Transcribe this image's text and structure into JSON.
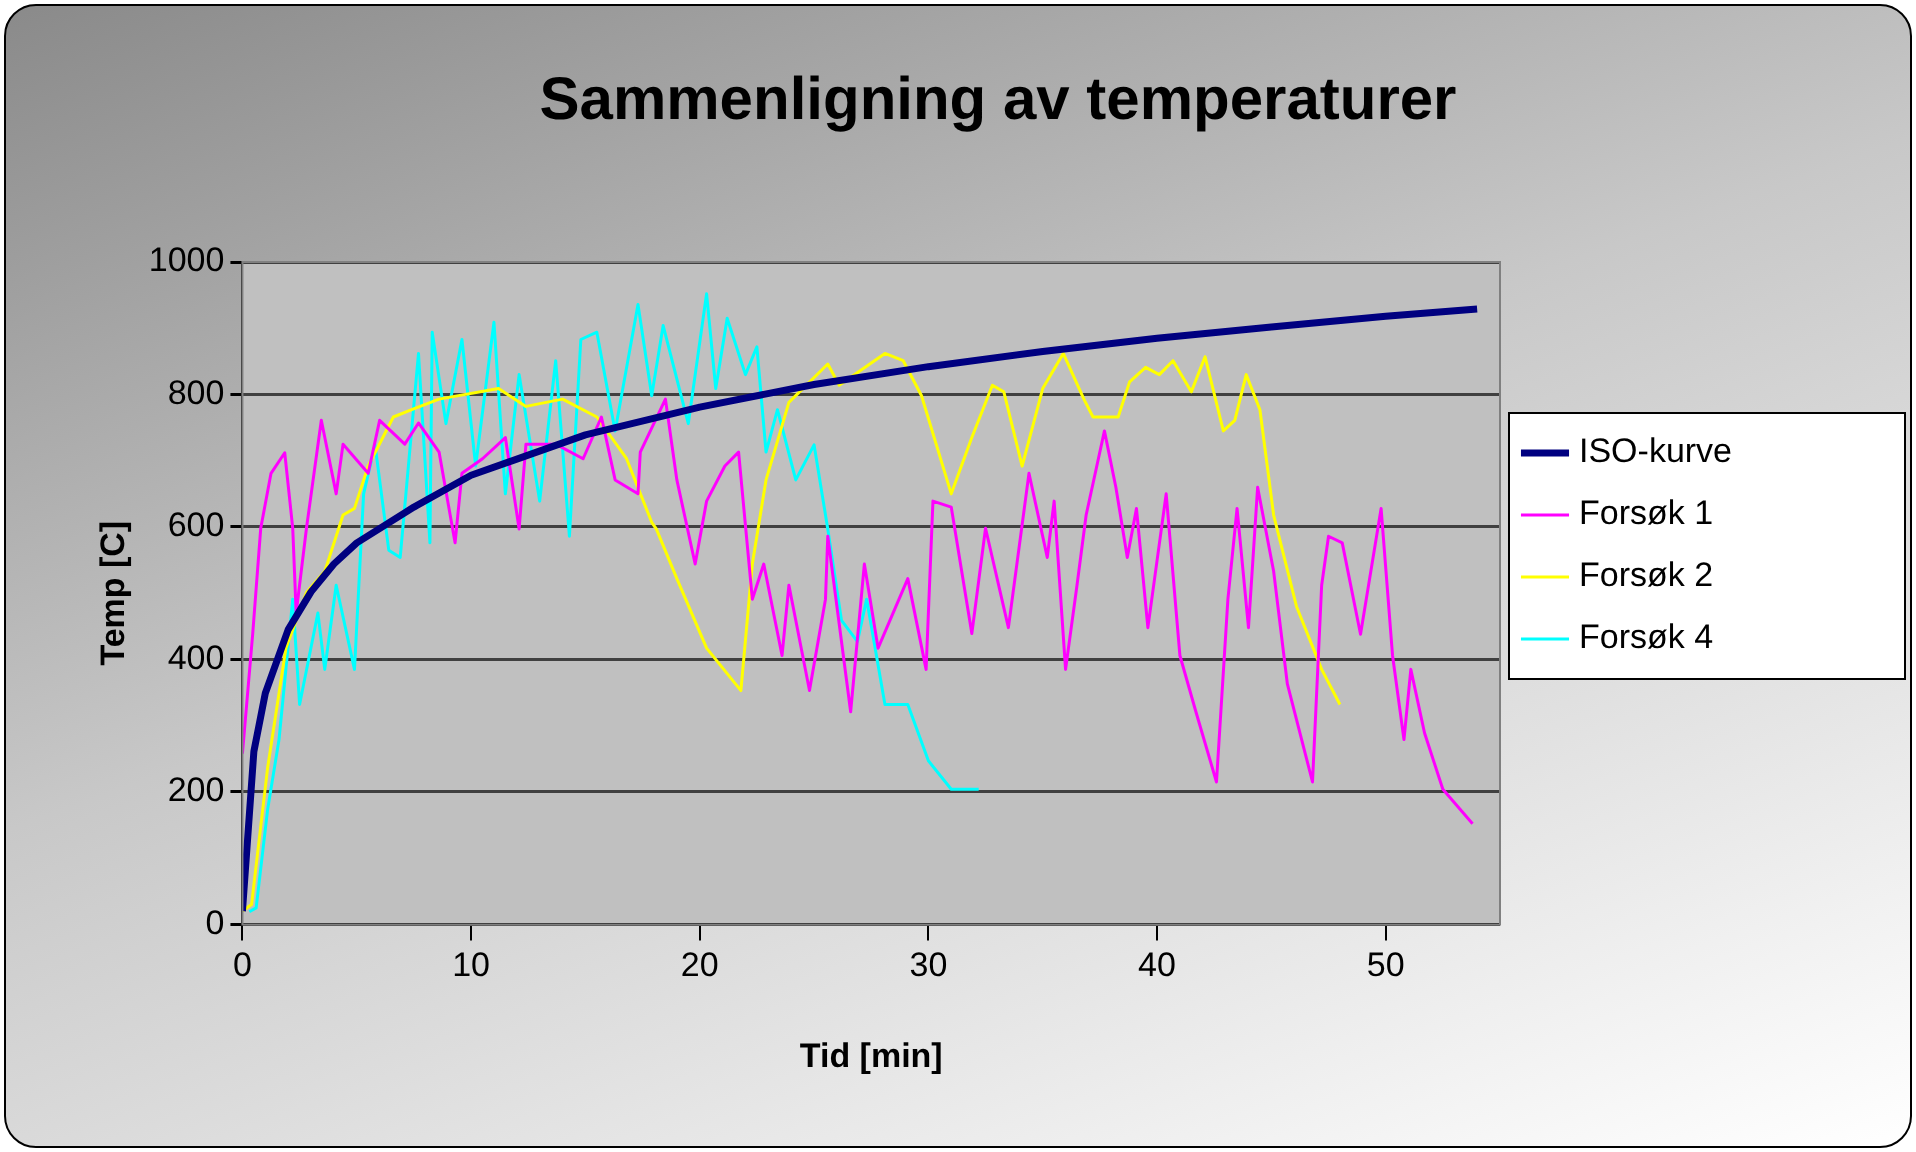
{
  "chart_data": {
    "type": "line",
    "title": "Sammenligning av temperaturer",
    "xlabel": "Tid [min]",
    "ylabel": "Temp [C]",
    "xlim": [
      0,
      55
    ],
    "xticks": [
      0,
      10,
      20,
      30,
      40,
      50
    ],
    "ylim": [
      0,
      1000
    ],
    "yticks": [
      0,
      200,
      400,
      600,
      800,
      1000
    ],
    "grid": "y",
    "legend": "right",
    "marker": "none",
    "line_style": "solid",
    "series": [
      {
        "name": "ISO-kurve",
        "color": "#000080",
        "x": [
          0,
          0.5,
          1,
          2,
          3,
          4,
          5,
          7.5,
          10,
          15,
          20,
          25,
          30,
          35,
          40,
          45,
          50,
          54
        ],
        "values": [
          20,
          261,
          349,
          445,
          502,
          544,
          576,
          630,
          678,
          739,
          781,
          815,
          842,
          865,
          885,
          902,
          918,
          929
        ]
      },
      {
        "name": "Forsøk 1",
        "color": "#ff00ff",
        "x": [
          0,
          0.45,
          0.8,
          1.25,
          1.85,
          2.2,
          2.35,
          2.8,
          3.45,
          4.1,
          4.4,
          5.5,
          6.0,
          7.1,
          7.7,
          8.6,
          9.3,
          9.6,
          10.5,
          11.5,
          12.1,
          12.4,
          13.7,
          14.9,
          15.7,
          16.3,
          17.3,
          17.4,
          18.5,
          19.0,
          19.8,
          20.3,
          21.1,
          21.7,
          22.3,
          22.8,
          23.6,
          23.9,
          24.8,
          25.5,
          25.6,
          26.6,
          27.2,
          27.8,
          29.1,
          29.9,
          30.2,
          31.0,
          31.9,
          32.5,
          33.5,
          34.4,
          35.2,
          35.5,
          36.0,
          36.5,
          36.9,
          37.7,
          38.2,
          38.7,
          39.1,
          39.6,
          40.4,
          41.0,
          41.7,
          42.6,
          43.1,
          43.5,
          44.0,
          44.4,
          45.1,
          45.7,
          46.8,
          47.2,
          47.5,
          48.1,
          48.9,
          49.8,
          50.3,
          50.8,
          51.1,
          51.7,
          52.5,
          53.8
        ],
        "values": [
          258,
          439,
          598,
          681,
          712,
          598,
          470,
          598,
          761,
          650,
          725,
          681,
          761,
          725,
          757,
          713,
          576,
          681,
          703,
          735,
          597,
          725,
          725,
          703,
          766,
          671,
          650,
          713,
          793,
          671,
          544,
          639,
          692,
          713,
          491,
          544,
          406,
          512,
          353,
          491,
          586,
          321,
          544,
          417,
          522,
          385,
          639,
          630,
          439,
          598,
          448,
          681,
          554,
          639,
          385,
          512,
          618,
          745,
          660,
          554,
          628,
          448,
          650,
          406,
          321,
          215,
          491,
          628,
          448,
          660,
          533,
          363,
          215,
          512,
          586,
          576,
          438,
          628,
          406,
          279,
          385,
          289,
          204,
          152
        ]
      },
      {
        "name": "Forsøk 2",
        "color": "#ffff00",
        "x": [
          0,
          0.4,
          1.1,
          1.9,
          2.8,
          3.6,
          4.4,
          4.9,
          5.5,
          6.6,
          7.4,
          8.6,
          11.2,
          12.4,
          14.0,
          15.5,
          16.8,
          17.9,
          18.1,
          19.0,
          20.3,
          21.8,
          22.3,
          22.9,
          23.9,
          25.6,
          26.1,
          28.1,
          28.9,
          29.7,
          31.0,
          31.9,
          32.8,
          33.3,
          34.1,
          35.0,
          35.9,
          36.8,
          37.2,
          38.3,
          38.8,
          39.5,
          40.1,
          40.7,
          41.5,
          42.1,
          42.9,
          43.4,
          43.9,
          44.5,
          45.1,
          46.1,
          47.2,
          48.0
        ],
        "values": [
          20,
          30,
          236,
          417,
          501,
          533,
          618,
          628,
          692,
          766,
          777,
          793,
          809,
          782,
          793,
          766,
          703,
          607,
          597,
          522,
          417,
          353,
          544,
          671,
          788,
          846,
          814,
          862,
          851,
          798,
          650,
          735,
          814,
          804,
          692,
          809,
          862,
          793,
          766,
          766,
          819,
          841,
          830,
          851,
          804,
          857,
          745,
          761,
          830,
          777,
          618,
          480,
          385,
          332
        ]
      },
      {
        "name": "Forsøk 4",
        "color": "#00ffff",
        "x": [
          0.3,
          0.6,
          1.1,
          1.6,
          2.2,
          2.5,
          3.3,
          3.6,
          4.1,
          4.9,
          5.3,
          5.8,
          6.4,
          6.9,
          7.7,
          8.2,
          8.3,
          8.9,
          9.6,
          10.2,
          11.0,
          11.5,
          12.1,
          13.0,
          13.7,
          14.3,
          14.8,
          15.5,
          16.3,
          17.3,
          17.9,
          18.4,
          19.5,
          20.3,
          20.7,
          21.2,
          22.0,
          22.5,
          22.9,
          23.4,
          24.2,
          25.0,
          25.6,
          26.2,
          26.9,
          27.3,
          28.1,
          29.1,
          30.0,
          31.0,
          32.2
        ],
        "values": [
          19,
          25,
          173,
          279,
          491,
          332,
          470,
          385,
          512,
          385,
          650,
          724,
          565,
          554,
          862,
          576,
          894,
          756,
          883,
          692,
          909,
          650,
          830,
          639,
          851,
          586,
          883,
          894,
          745,
          936,
          798,
          904,
          756,
          952,
          809,
          915,
          830,
          872,
          713,
          777,
          671,
          724,
          597,
          459,
          427,
          491,
          332,
          332,
          247,
          204,
          204
        ]
      }
    ]
  }
}
